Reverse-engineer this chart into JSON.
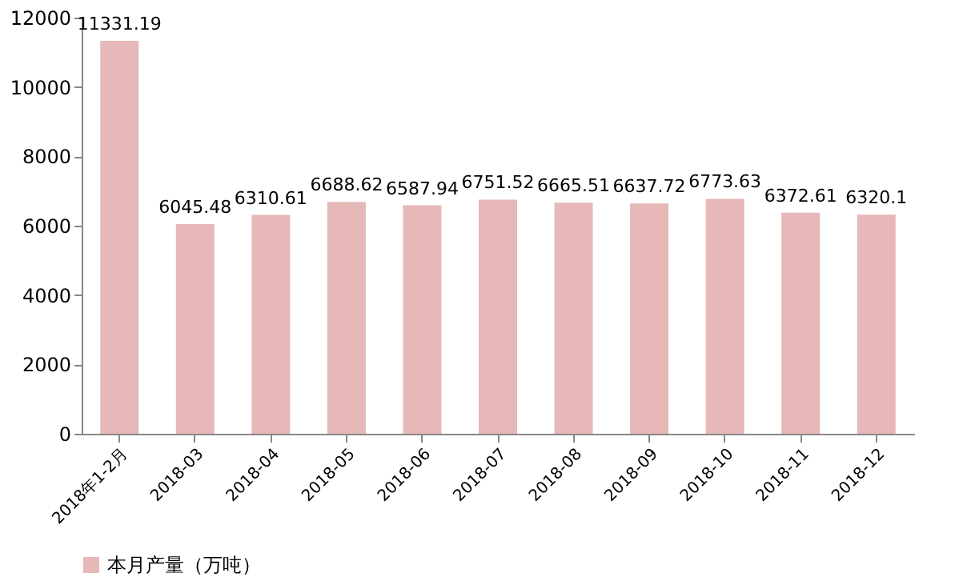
{
  "chart_data": {
    "type": "bar",
    "categories": [
      "2018年1-2月",
      "2018-03",
      "2018-04",
      "2018-05",
      "2018-06",
      "2018-07",
      "2018-08",
      "2018-09",
      "2018-10",
      "2018-11",
      "2018-12"
    ],
    "series": [
      {
        "name": "本月产量（万吨）",
        "color": "#e6b8b7",
        "values": [
          11331.19,
          6045.48,
          6310.61,
          6688.62,
          6587.94,
          6751.52,
          6665.51,
          6637.72,
          6773.63,
          6372.61,
          6320.1
        ]
      }
    ],
    "ylim": [
      0,
      12000
    ],
    "yticks": [
      0,
      2000,
      4000,
      6000,
      8000,
      10000,
      12000
    ],
    "data_labels": true,
    "grid": false,
    "legend": "bottom"
  }
}
